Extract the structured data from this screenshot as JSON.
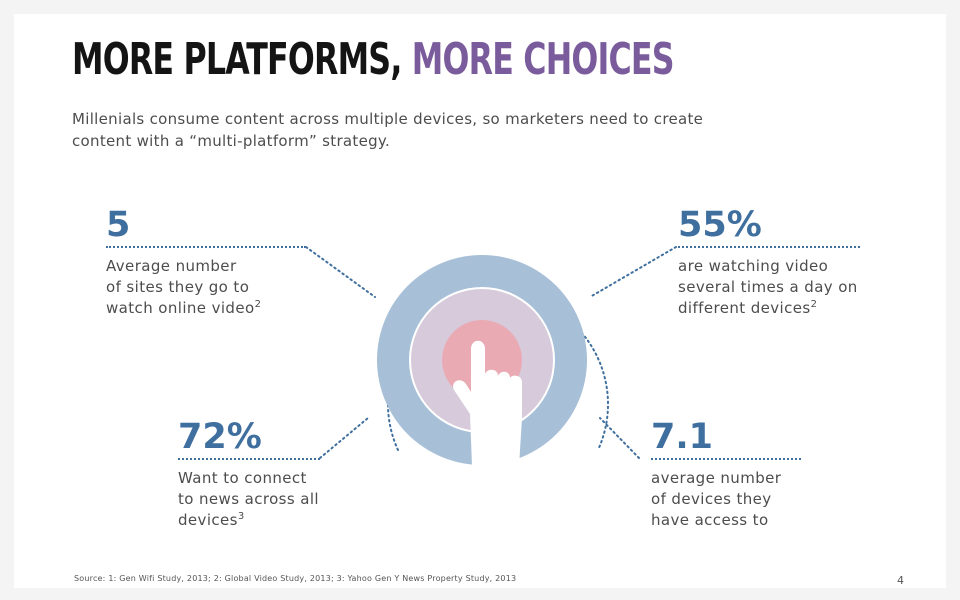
{
  "title": {
    "part1": "MORE PLATFORMS,",
    "part2": "MORE CHOICES"
  },
  "subtitle": "Millenials consume content across multiple devices, so marketers need to create content with a “multi-platform” strategy.",
  "stats": [
    {
      "value": "5",
      "lines": [
        "Average number",
        "of sites they go to",
        "watch online video"
      ],
      "sup": "2"
    },
    {
      "value": "55%",
      "lines": [
        "are watching video",
        "several times a day on",
        "different devices"
      ],
      "sup": "2"
    },
    {
      "value": "72%",
      "lines": [
        "Want to connect",
        "to news across all",
        "devices"
      ],
      "sup": "3"
    },
    {
      "value": "7.1",
      "lines": [
        "average number",
        "of devices they",
        "have access to"
      ],
      "sup": ""
    }
  ],
  "source": "Source: 1: Gen Wifi Study, 2013; 2: Global Video Study, 2013; 3: Yahoo Gen Y News Property Study, 2013",
  "page_number": "4",
  "graphic": {
    "icon": "hand-pointer-icon"
  },
  "colors": {
    "title_dark": "#141414",
    "title_accent": "#7a5c9c",
    "stat_blue": "#3f6f9e",
    "ring_outer": "#a7c0d7",
    "ring_middle": "#d6cadb",
    "ring_inner": "#e9aab3"
  }
}
